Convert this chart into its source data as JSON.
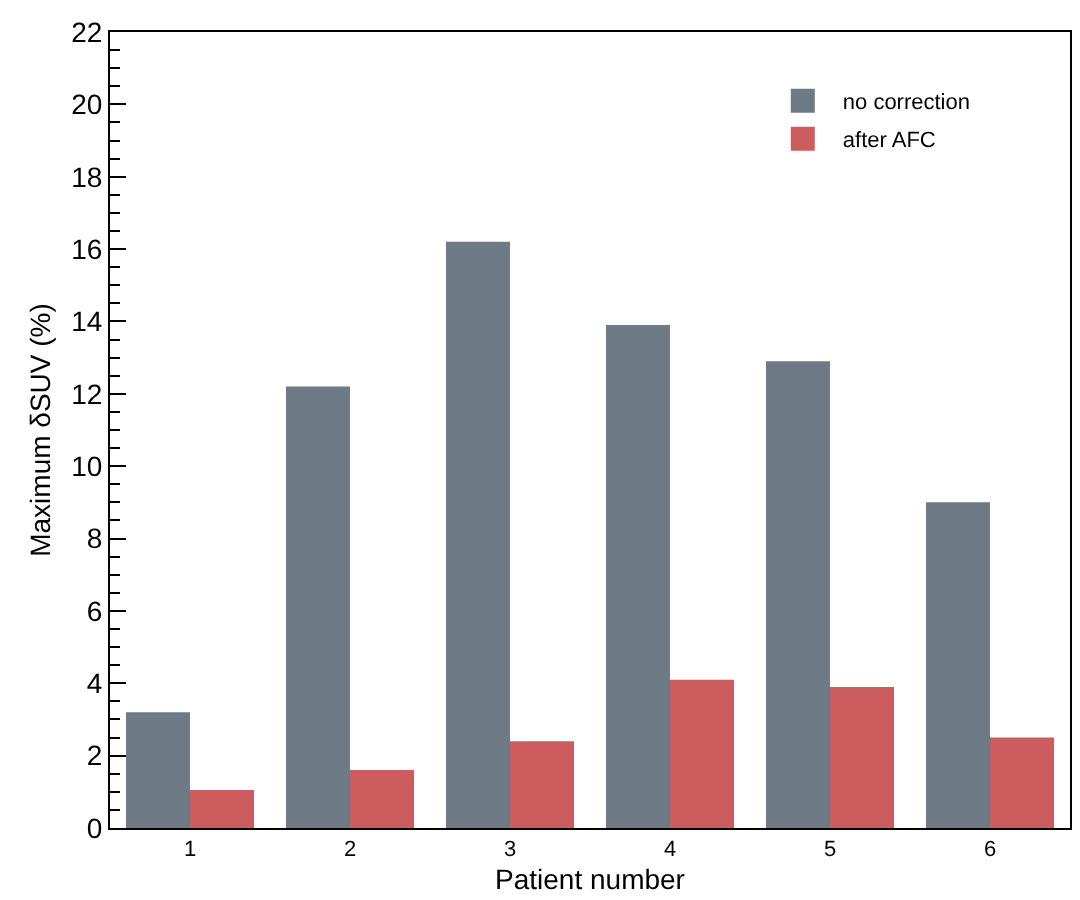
{
  "chart_data": {
    "type": "bar",
    "xlabel": "Patient number",
    "ylabel": "Maximum δSUV (%)",
    "categories": [
      "1",
      "2",
      "3",
      "4",
      "5",
      "6"
    ],
    "series": [
      {
        "name": "no correction",
        "color": "#6e7a85",
        "values": [
          3.2,
          12.2,
          16.2,
          13.9,
          12.9,
          9.0
        ]
      },
      {
        "name": "after AFC",
        "color": "#cd5c5f",
        "values": [
          1.05,
          1.6,
          2.4,
          4.1,
          3.9,
          2.5
        ]
      }
    ],
    "ylim": [
      0,
      22
    ],
    "yticks": [
      0,
      2,
      4,
      6,
      8,
      10,
      12,
      14,
      16,
      18,
      20,
      22
    ],
    "grid": false,
    "legend": "top right"
  }
}
